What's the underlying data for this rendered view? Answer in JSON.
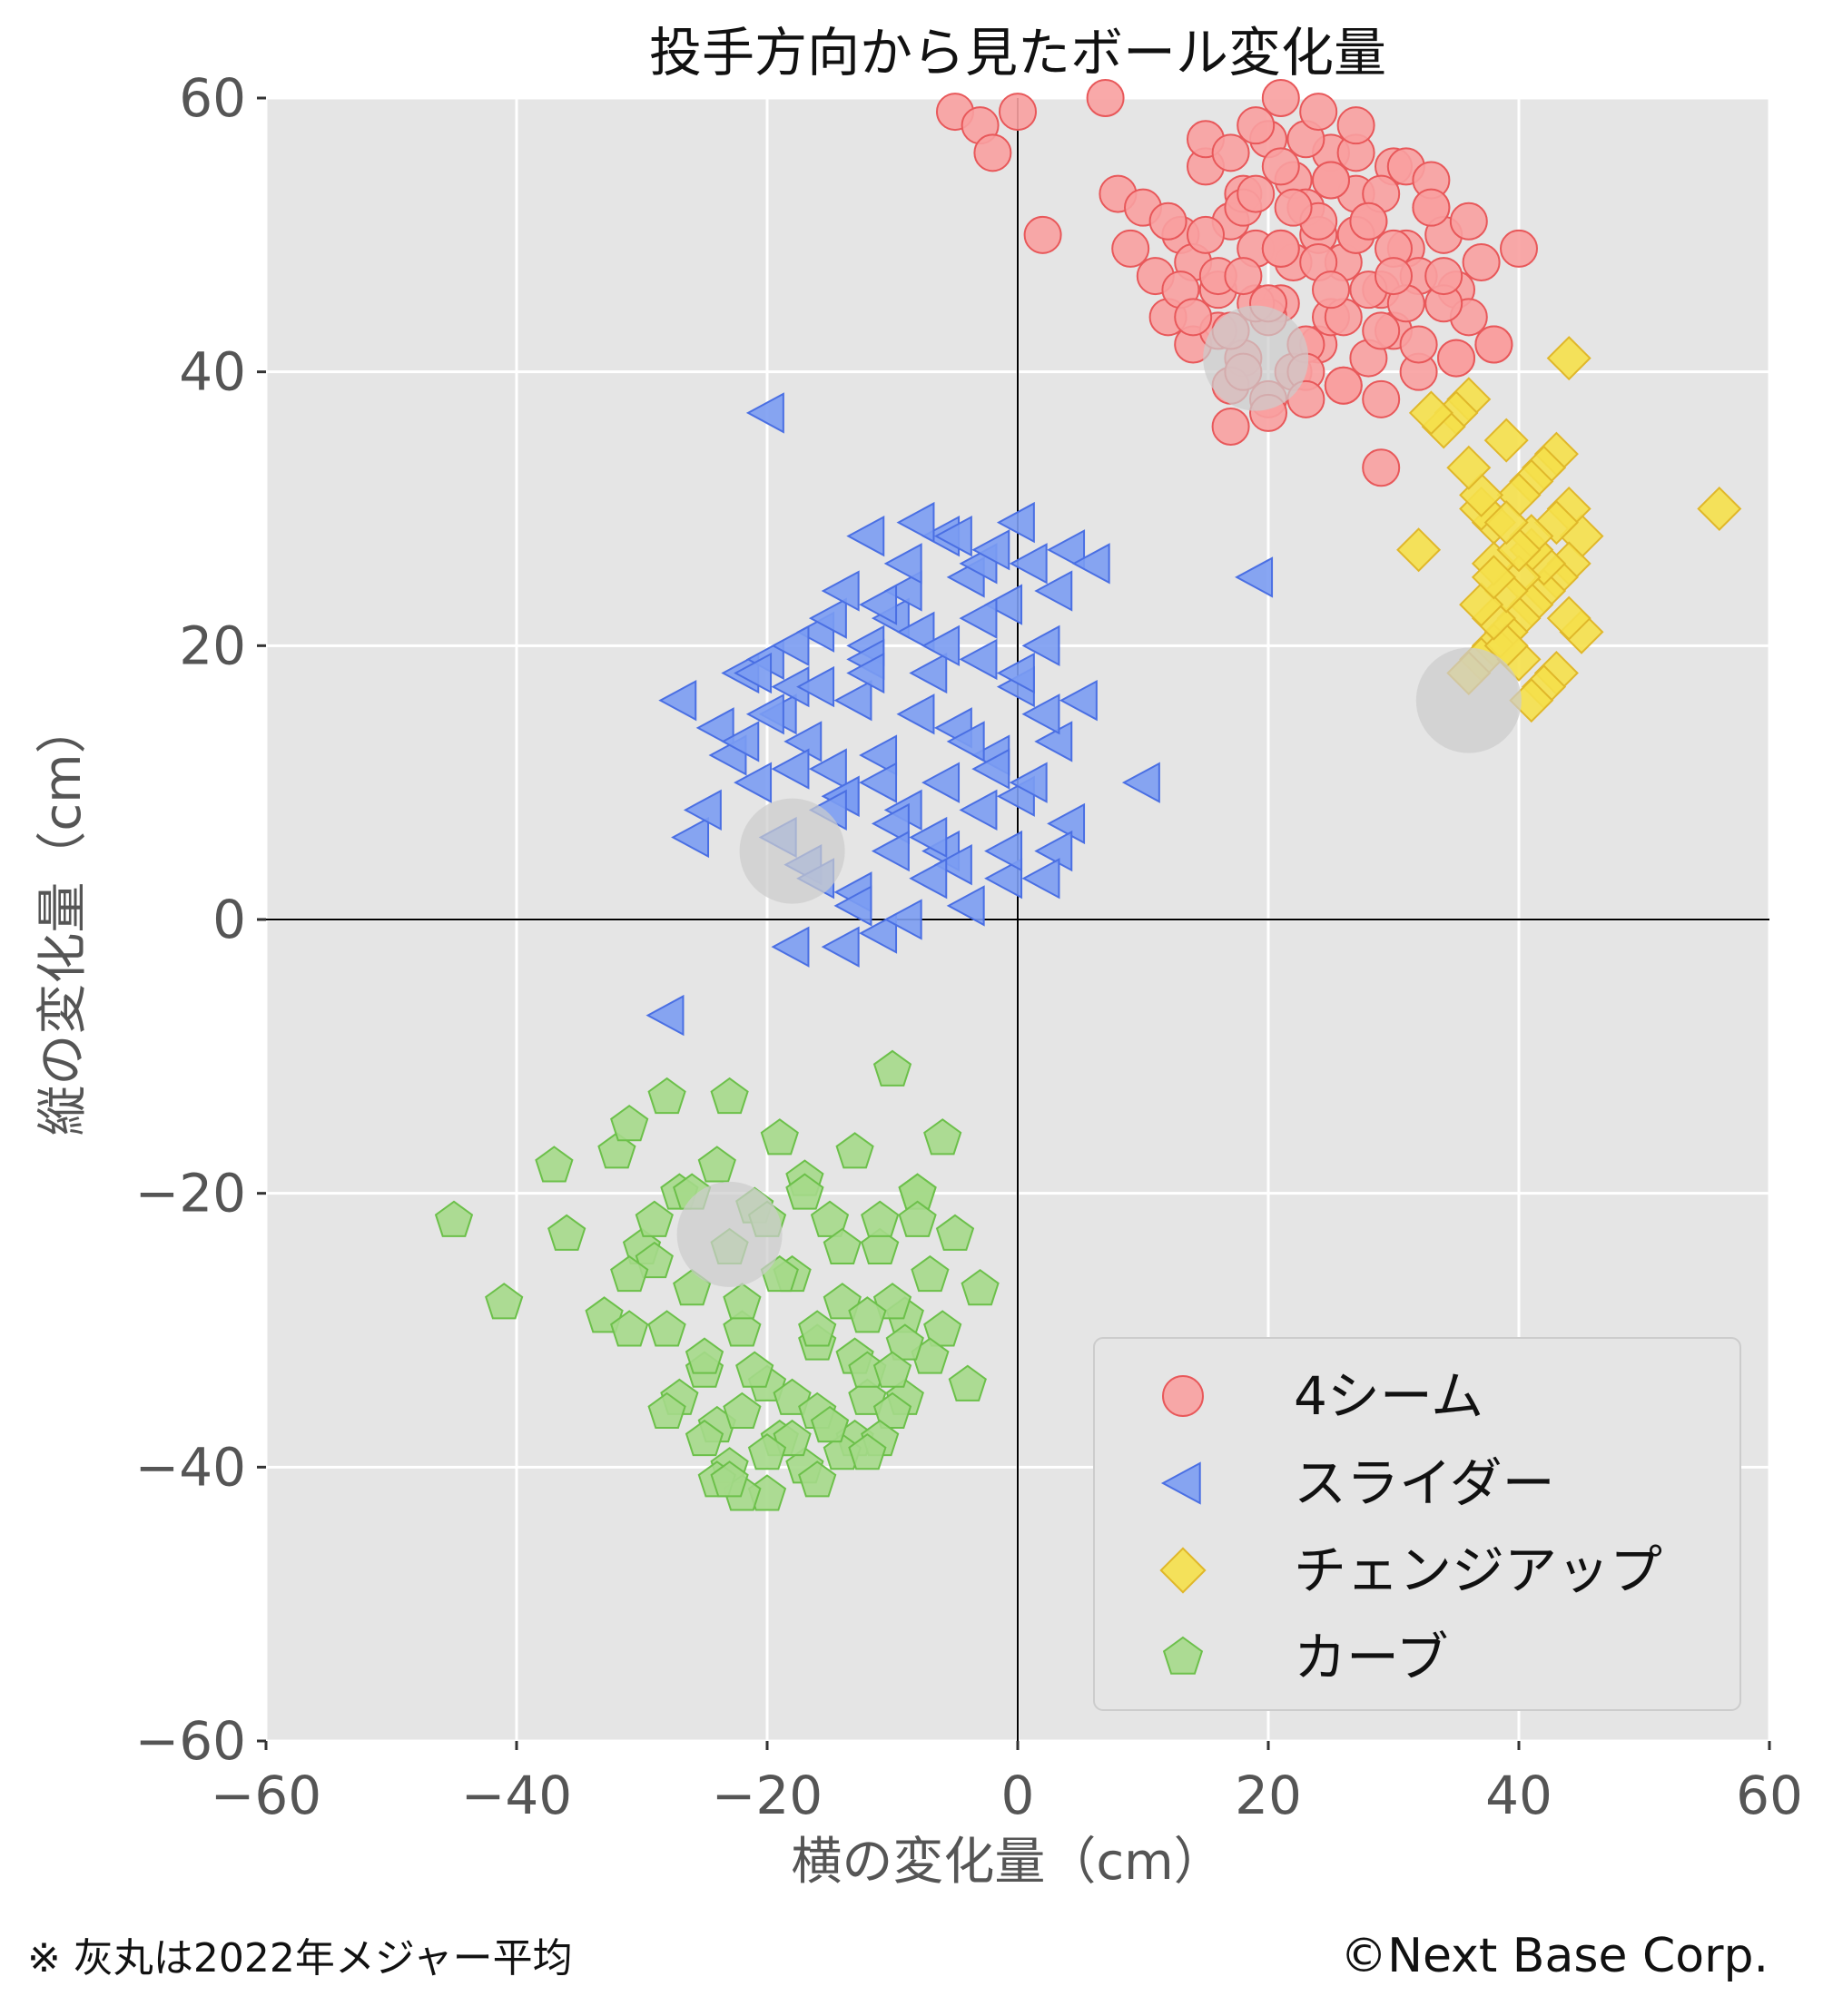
{
  "chart_data": {
    "type": "scatter",
    "title": "投手方向から見たボール変化量",
    "xlabel": "横の変化量（cm）",
    "ylabel": "縦の変化量（cm）",
    "xlim": [
      -60,
      60
    ],
    "ylim": [
      -60,
      60
    ],
    "x_ticks": [
      -60,
      -40,
      -20,
      0,
      20,
      40,
      60
    ],
    "y_ticks": [
      -60,
      -40,
      -20,
      0,
      20,
      40,
      60
    ],
    "x_tick_labels": [
      "−60",
      "−40",
      "−20",
      "0",
      "20",
      "40",
      "60"
    ],
    "y_tick_labels": [
      "−60",
      "−40",
      "−20",
      "0",
      "20",
      "40",
      "60"
    ],
    "grid": true,
    "legend_position": "bottom-right",
    "series": [
      {
        "name": "4シーム",
        "marker": "circle",
        "color": "#f8a0a0",
        "edge": "#e8585a",
        "x": [
          -5,
          -3,
          -2,
          0,
          2,
          7,
          8,
          9,
          10,
          11,
          12,
          13,
          14,
          15,
          16,
          17,
          18,
          19,
          20,
          21,
          22,
          23,
          24,
          25,
          26,
          27,
          28,
          29,
          30,
          31,
          32,
          33,
          34,
          35,
          36,
          37,
          38,
          40,
          14,
          16,
          18,
          20,
          22,
          24,
          26,
          28,
          30,
          32,
          34,
          15,
          17,
          19,
          21,
          23,
          25,
          27,
          29,
          31,
          33,
          13,
          16,
          19,
          22,
          25,
          28,
          31,
          34,
          12,
          15,
          18,
          21,
          24,
          27,
          30,
          33,
          36,
          14,
          17,
          20,
          23,
          26,
          29,
          32,
          35,
          18,
          21,
          24,
          27,
          30,
          17,
          20,
          23,
          26,
          29,
          19,
          22,
          25,
          28,
          21,
          24,
          27,
          17,
          20,
          23,
          18,
          25,
          29,
          35,
          38
        ],
        "y": [
          59,
          58,
          56,
          59,
          50,
          60,
          53,
          49,
          52,
          47,
          44,
          50,
          48,
          55,
          46,
          51,
          53,
          49,
          57,
          45,
          54,
          52,
          50,
          56,
          48,
          53,
          51,
          46,
          55,
          49,
          47,
          52,
          50,
          46,
          44,
          48,
          42,
          49,
          42,
          43,
          41,
          44,
          40,
          42,
          39,
          41,
          43,
          40,
          45,
          57,
          56,
          58,
          55,
          57,
          54,
          56,
          53,
          55,
          54,
          46,
          47,
          45,
          48,
          44,
          46,
          45,
          47,
          51,
          50,
          52,
          49,
          51,
          50,
          49,
          52,
          51,
          44,
          43,
          45,
          42,
          44,
          43,
          42,
          41,
          47,
          49,
          48,
          50,
          47,
          39,
          38,
          40,
          39,
          38,
          53,
          52,
          54,
          51,
          60,
          59,
          58,
          36,
          37,
          38,
          40,
          46,
          33,
          41,
          42
        ]
      },
      {
        "name": "スライダー",
        "marker": "triangle-left",
        "color": "#7b9cf2",
        "edge": "#4a6fe3",
        "x": [
          -20,
          -27,
          -26,
          -25,
          -24,
          -23,
          -22,
          -21,
          -20,
          -19,
          -18,
          -17,
          -16,
          -15,
          -14,
          -13,
          -12,
          -11,
          -10,
          -9,
          -8,
          -7,
          -6,
          -5,
          -4,
          -3,
          -2,
          -1,
          0,
          1,
          2,
          3,
          4,
          5,
          6,
          10,
          19,
          -18,
          -14,
          -11,
          -28,
          -22,
          -20,
          -18,
          -16,
          -14,
          -12,
          -10,
          -8,
          -6,
          -4,
          -2,
          0,
          2,
          4,
          -19,
          -17,
          -15,
          -13,
          -11,
          -9,
          -7,
          -5,
          -3,
          -1,
          1,
          3,
          -21,
          -18,
          -15,
          -12,
          -9,
          -6,
          -3,
          0,
          3,
          -16,
          -13,
          -10,
          -7,
          -4,
          -1,
          2,
          -12,
          -9,
          -6,
          -3,
          0,
          -8,
          -5,
          -2,
          -14,
          -11
        ],
        "y": [
          37,
          16,
          6,
          8,
          14,
          12,
          18,
          10,
          19,
          15,
          17,
          13,
          21,
          11,
          9,
          16,
          20,
          12,
          22,
          8,
          15,
          18,
          10,
          14,
          25,
          19,
          12,
          23,
          17,
          26,
          20,
          13,
          27,
          16,
          26,
          10,
          25,
          -2,
          -2,
          -1,
          -7,
          13,
          15,
          11,
          17,
          9,
          19,
          7,
          21,
          5,
          13,
          11,
          9,
          15,
          7,
          6,
          4,
          8,
          2,
          10,
          0,
          6,
          4,
          8,
          3,
          10,
          5,
          18,
          20,
          22,
          18,
          24,
          20,
          22,
          18,
          24,
          3,
          1,
          5,
          3,
          1,
          5,
          3,
          28,
          26,
          28,
          26,
          29,
          29,
          28,
          27,
          24,
          23
        ]
      },
      {
        "name": "チェンジアップ",
        "marker": "diamond",
        "color": "#f5e04a",
        "edge": "#e0b72a",
        "x": [
          56,
          44,
          43,
          42,
          41,
          40,
          39,
          38,
          37,
          36,
          35,
          34,
          33,
          32,
          45,
          44,
          43,
          42,
          41,
          40,
          39,
          38,
          37,
          36,
          45,
          44,
          43,
          42,
          41,
          40,
          39,
          38,
          42,
          41,
          40,
          39,
          38,
          37,
          44,
          43,
          41,
          40,
          39,
          38,
          37,
          36
        ],
        "y": [
          30,
          41,
          34,
          33,
          32,
          31,
          35,
          29,
          30,
          38,
          37,
          36,
          37,
          27,
          28,
          26,
          25,
          24,
          23,
          22,
          21,
          20,
          19,
          18,
          21,
          22,
          18,
          17,
          16,
          19,
          20,
          22,
          26,
          27,
          25,
          24,
          26,
          23,
          30,
          29,
          28,
          27,
          29,
          25,
          31,
          33
        ]
      },
      {
        "name": "カーブ",
        "marker": "pentagon",
        "color": "#a5d98a",
        "edge": "#6cc04a",
        "x": [
          -45,
          -41,
          -37,
          -36,
          -33,
          -32,
          -31,
          -30,
          -29,
          -28,
          -27,
          -26,
          -25,
          -24,
          -23,
          -22,
          -21,
          -20,
          -19,
          -18,
          -17,
          -16,
          -15,
          -14,
          -13,
          -12,
          -11,
          -10,
          -9,
          -8,
          -7,
          -6,
          -5,
          -4,
          -3,
          -31,
          -28,
          -25,
          -22,
          -19,
          -16,
          -13,
          -10,
          -29,
          -26,
          -23,
          -20,
          -17,
          -14,
          -11,
          -8,
          -27,
          -24,
          -21,
          -18,
          -15,
          -12,
          -9,
          -6,
          -25,
          -22,
          -19,
          -16,
          -13,
          -10,
          -7,
          -23,
          -20,
          -17,
          -14,
          -11,
          -8,
          -22,
          -18,
          -15,
          -12,
          -24,
          -20,
          -16,
          -12,
          -9,
          -28,
          -31,
          -10,
          -23
        ],
        "y": [
          -22,
          -28,
          -18,
          -23,
          -29,
          -17,
          -15,
          -24,
          -25,
          -13,
          -20,
          -27,
          -33,
          -18,
          -13,
          -30,
          -21,
          -34,
          -16,
          -26,
          -19,
          -31,
          -22,
          -28,
          -17,
          -35,
          -24,
          -11,
          -29,
          -20,
          -26,
          -16,
          -23,
          -34,
          -27,
          -26,
          -30,
          -32,
          -28,
          -26,
          -30,
          -32,
          -28,
          -22,
          -20,
          -24,
          -22,
          -20,
          -24,
          -22,
          -20,
          -35,
          -37,
          -33,
          -35,
          -37,
          -33,
          -35,
          -30,
          -38,
          -36,
          -38,
          -36,
          -38,
          -36,
          -32,
          -40,
          -42,
          -40,
          -39,
          -38,
          -22,
          -42,
          -38,
          -37,
          -39,
          -41,
          -39,
          -41,
          -29,
          -31,
          -36,
          -30,
          -33,
          -41
        ]
      }
    ],
    "average_markers": [
      {
        "x": 19,
        "y": 41
      },
      {
        "x": -18,
        "y": 5
      },
      {
        "x": 36,
        "y": 16
      },
      {
        "x": -23,
        "y": -23
      }
    ]
  },
  "footnote": "※ 灰丸は2022年メジャー平均",
  "copyright": "©Next Base Corp."
}
